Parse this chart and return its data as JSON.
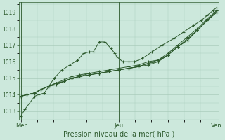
{
  "background_color": "#cce8dc",
  "grid_color": "#aaccbb",
  "line_color": "#2d5a2d",
  "marker_color": "#2d5a2d",
  "xlabel": "Pression niveau de la mer( hPa )",
  "xtick_labels": [
    "Mer",
    "Jeu",
    "Ven"
  ],
  "xtick_positions": [
    0.0,
    0.5,
    1.0
  ],
  "ylim": [
    1012.5,
    1019.6
  ],
  "yticks": [
    1013,
    1014,
    1015,
    1016,
    1017,
    1018,
    1019
  ],
  "series": [
    {
      "x": [
        0.0,
        0.02,
        0.07,
        0.09,
        0.12,
        0.17,
        0.21,
        0.25,
        0.29,
        0.32,
        0.35,
        0.37,
        0.4,
        0.43,
        0.46,
        0.48,
        0.49,
        0.52,
        0.55,
        0.58,
        0.62,
        0.67,
        0.72,
        0.78,
        0.83,
        0.88,
        0.92,
        0.95,
        0.98,
        1.0
      ],
      "y": [
        1012.7,
        1013.1,
        1013.9,
        1014.0,
        1014.1,
        1015.0,
        1015.5,
        1015.8,
        1016.1,
        1016.5,
        1016.6,
        1016.6,
        1017.2,
        1017.2,
        1016.8,
        1016.5,
        1016.3,
        1016.0,
        1016.0,
        1016.0,
        1016.2,
        1016.6,
        1017.0,
        1017.4,
        1017.8,
        1018.2,
        1018.5,
        1018.8,
        1019.1,
        1019.3
      ]
    },
    {
      "x": [
        0.0,
        0.03,
        0.07,
        0.1,
        0.14,
        0.18,
        0.22,
        0.26,
        0.3,
        0.35,
        0.4,
        0.45,
        0.5,
        0.55,
        0.6,
        0.65,
        0.7,
        0.75,
        0.8,
        0.85,
        0.9,
        0.95,
        1.0
      ],
      "y": [
        1013.9,
        1014.0,
        1014.1,
        1014.3,
        1014.5,
        1014.7,
        1014.9,
        1015.1,
        1015.2,
        1015.3,
        1015.3,
        1015.4,
        1015.5,
        1015.6,
        1015.7,
        1015.9,
        1016.1,
        1016.5,
        1017.0,
        1017.5,
        1018.0,
        1018.6,
        1019.1
      ]
    },
    {
      "x": [
        0.0,
        0.03,
        0.07,
        0.1,
        0.14,
        0.18,
        0.22,
        0.26,
        0.3,
        0.35,
        0.4,
        0.45,
        0.5,
        0.55,
        0.6,
        0.65,
        0.7,
        0.75,
        0.8,
        0.85,
        0.9,
        0.95,
        1.0
      ],
      "y": [
        1013.9,
        1014.0,
        1014.1,
        1014.3,
        1014.5,
        1014.7,
        1014.8,
        1015.0,
        1015.1,
        1015.2,
        1015.3,
        1015.4,
        1015.5,
        1015.6,
        1015.7,
        1015.8,
        1016.0,
        1016.4,
        1016.9,
        1017.4,
        1017.9,
        1018.5,
        1019.0
      ]
    },
    {
      "x": [
        0.0,
        0.03,
        0.07,
        0.1,
        0.14,
        0.18,
        0.22,
        0.26,
        0.3,
        0.35,
        0.4,
        0.45,
        0.5,
        0.55,
        0.6,
        0.65,
        0.7,
        0.75,
        0.8,
        0.85,
        0.9,
        0.95,
        1.0
      ],
      "y": [
        1013.9,
        1014.0,
        1014.1,
        1014.3,
        1014.5,
        1014.6,
        1014.8,
        1015.0,
        1015.1,
        1015.2,
        1015.3,
        1015.4,
        1015.5,
        1015.6,
        1015.7,
        1015.9,
        1016.0,
        1016.4,
        1016.9,
        1017.3,
        1017.9,
        1018.5,
        1019.0
      ]
    },
    {
      "x": [
        0.0,
        0.03,
        0.07,
        0.1,
        0.14,
        0.18,
        0.22,
        0.26,
        0.3,
        0.35,
        0.4,
        0.45,
        0.5,
        0.55,
        0.6,
        0.65,
        0.7,
        0.75,
        0.8,
        0.85,
        0.9,
        0.95,
        1.0
      ],
      "y": [
        1013.9,
        1014.0,
        1014.1,
        1014.3,
        1014.5,
        1014.7,
        1014.8,
        1015.0,
        1015.1,
        1015.3,
        1015.4,
        1015.5,
        1015.6,
        1015.7,
        1015.8,
        1016.0,
        1016.1,
        1016.4,
        1016.9,
        1017.3,
        1017.9,
        1018.5,
        1019.1
      ]
    }
  ]
}
